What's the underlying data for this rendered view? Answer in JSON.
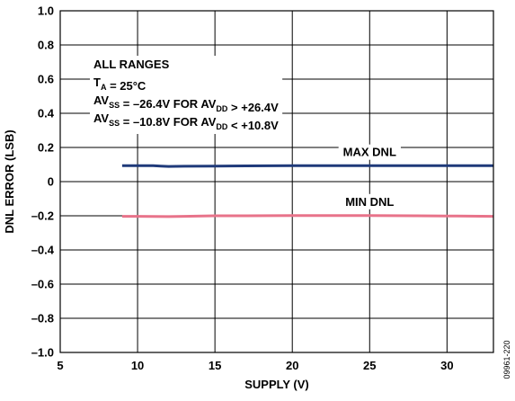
{
  "chart_data": {
    "type": "line",
    "xlabel": "SUPPLY (V)",
    "ylabel": "DNL ERROR (LSB)",
    "xlim": [
      5,
      33
    ],
    "ylim": [
      -1.0,
      1.0
    ],
    "x_ticks": [
      5,
      10,
      15,
      20,
      25,
      30
    ],
    "x_tick_labels": [
      "5",
      "10",
      "15",
      "20",
      "25",
      "30"
    ],
    "y_ticks": [
      1.0,
      0.8,
      0.6,
      0.4,
      0.2,
      0,
      -0.2,
      -0.4,
      -0.6,
      -0.8,
      -1.0
    ],
    "y_tick_labels": [
      "1.0",
      "0.8",
      "0.6",
      "0.4",
      "0.2",
      "0",
      "–0.2",
      "–0.4",
      "–0.6",
      "–0.8",
      "–1.0"
    ],
    "grid": true,
    "series": [
      {
        "name": "MAX DNL",
        "color": "#1f3a7a",
        "x": [
          9,
          10,
          11,
          11.5,
          12,
          13,
          15,
          17,
          20,
          22,
          25,
          28,
          30,
          33
        ],
        "y": [
          0.093,
          0.093,
          0.093,
          0.091,
          0.089,
          0.09,
          0.091,
          0.092,
          0.093,
          0.093,
          0.093,
          0.093,
          0.093,
          0.093
        ]
      },
      {
        "name": "MIN DNL",
        "color": "#e8738a",
        "x": [
          9,
          10,
          11,
          12,
          13,
          15,
          17,
          20,
          22,
          25,
          28,
          30,
          33
        ],
        "y": [
          -0.203,
          -0.203,
          -0.204,
          -0.205,
          -0.203,
          -0.2,
          -0.2,
          -0.199,
          -0.199,
          -0.199,
          -0.2,
          -0.201,
          -0.203
        ]
      }
    ],
    "annotation_lines": [
      {
        "parts": [
          {
            "t": "ALL RANGES"
          }
        ]
      },
      {
        "parts": [
          {
            "t": "T"
          },
          {
            "t": "A",
            "sub": true
          },
          {
            "t": " = 25°C"
          }
        ]
      },
      {
        "parts": [
          {
            "t": "AV"
          },
          {
            "t": "SS",
            "sub": true
          },
          {
            "t": " = –26.4V FOR AV"
          },
          {
            "t": "DD",
            "sub": true
          },
          {
            "t": " > +26.4V"
          }
        ]
      },
      {
        "parts": [
          {
            "t": "AV"
          },
          {
            "t": "SS",
            "sub": true
          },
          {
            "t": " = –10.8V FOR AV"
          },
          {
            "t": "DD",
            "sub": true
          },
          {
            "t": " < +10.8V"
          }
        ]
      }
    ],
    "figure_id": "09961-220"
  }
}
